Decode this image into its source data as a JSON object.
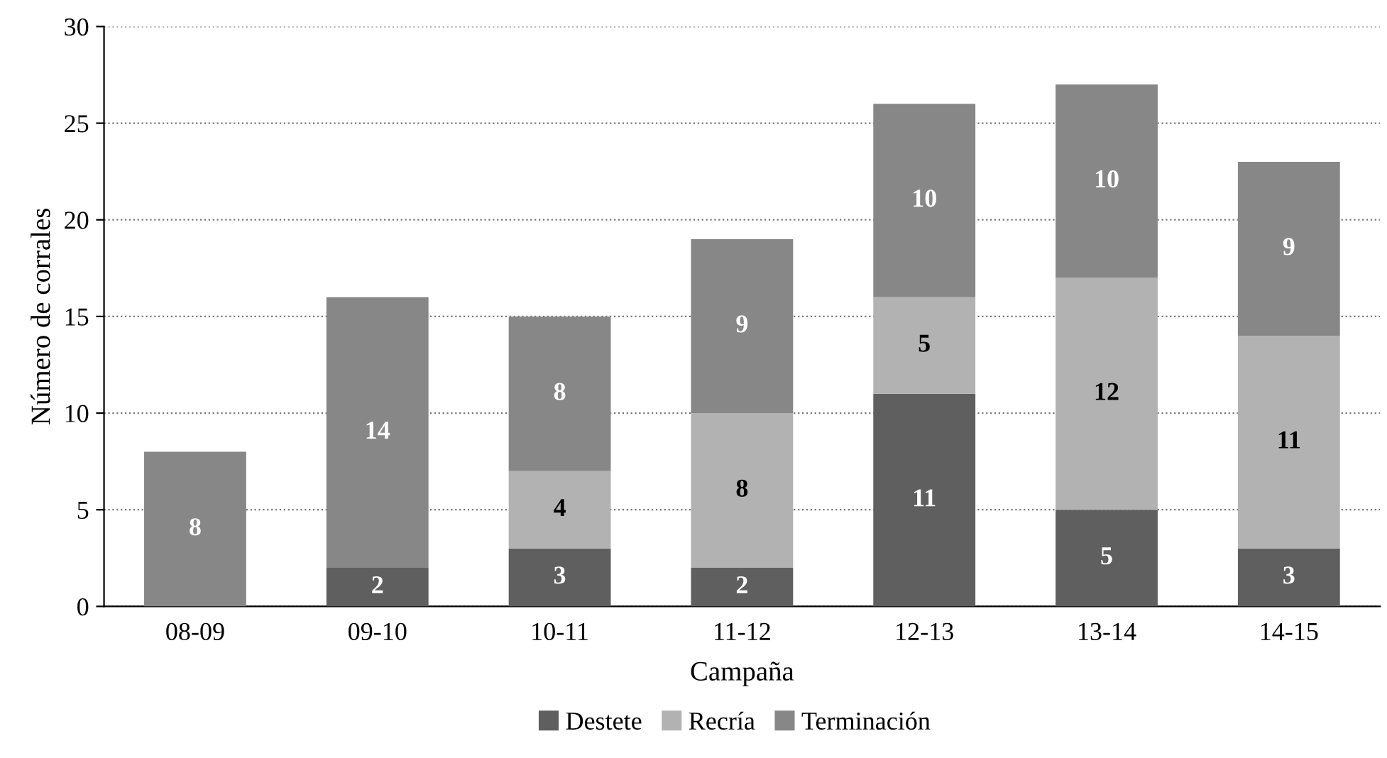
{
  "chart_data": {
    "type": "bar",
    "stacked": true,
    "xlabel": "Campaña",
    "ylabel": "Número de corrales",
    "categories": [
      "08-09",
      "09-10",
      "10-11",
      "11-12",
      "12-13",
      "13-14",
      "14-15"
    ],
    "series": [
      {
        "name": "Destete",
        "color": "#5f5f5f",
        "values": [
          null,
          2,
          3,
          2,
          11,
          5,
          3
        ]
      },
      {
        "name": "Recría",
        "color": "#b2b2b2",
        "values": [
          null,
          null,
          4,
          8,
          5,
          12,
          11
        ]
      },
      {
        "name": "Terminación",
        "color": "#878787",
        "values": [
          8,
          14,
          8,
          9,
          10,
          10,
          9
        ]
      }
    ],
    "ylim": [
      0,
      30
    ],
    "yticks": [
      0,
      5,
      10,
      15,
      20,
      25,
      30
    ],
    "grid": "y",
    "legend": "bottom",
    "data_labels": true
  }
}
